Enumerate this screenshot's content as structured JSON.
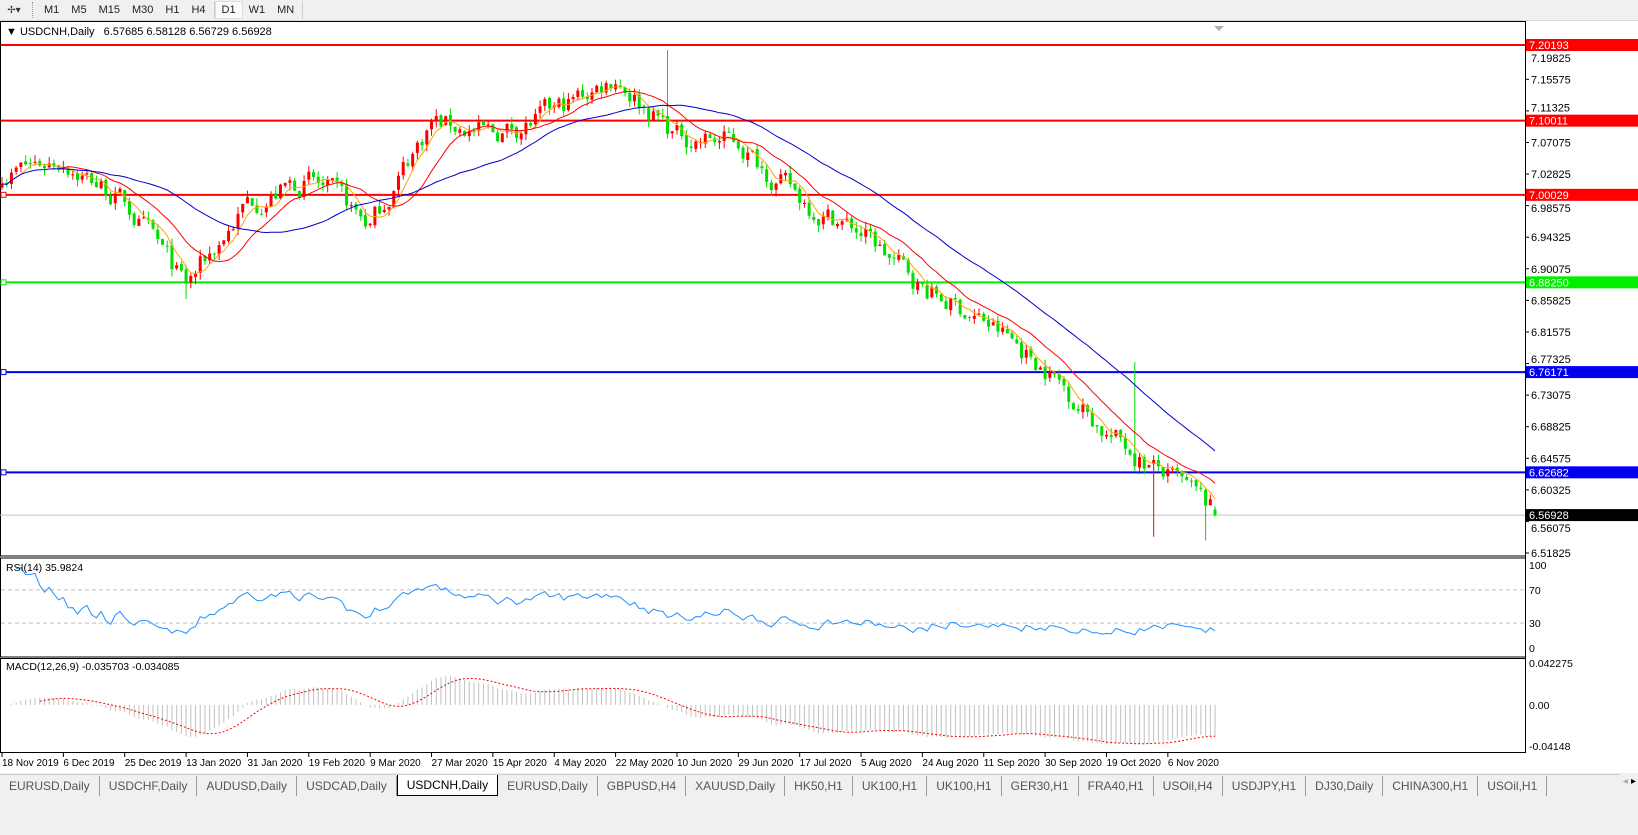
{
  "toolbar": {
    "tool_icon": "crosshair-cursor-icon",
    "timeframes": [
      "M1",
      "M5",
      "M15",
      "M30",
      "H1",
      "H4",
      "D1",
      "W1",
      "MN"
    ],
    "active_timeframe": "D1"
  },
  "chart_header": {
    "symbol": "USDCNH,Daily",
    "ohlc": "6.57685 6.58128 6.56729 6.56928"
  },
  "colors": {
    "bull_candle": "#ff0000",
    "bear_candle": "#00dd00",
    "ma_fast": "#ffa500",
    "ma_mid": "#ff0000",
    "ma_slow": "#0000cc",
    "rsi_line": "#1e90ff",
    "macd_histogram": "#c0c0c0",
    "macd_signal": "#ff0000"
  },
  "price_axis": {
    "ticks": [
      "7.19825",
      "7.15575",
      "7.11325",
      "7.07075",
      "7.02825",
      "6.98575",
      "6.94325",
      "6.90075",
      "6.85825",
      "6.81575",
      "6.77325",
      "6.73075",
      "6.68825",
      "6.64575",
      "6.60325",
      "6.56075",
      "6.51825"
    ]
  },
  "horizontal_lines": [
    {
      "price": "7.20193",
      "color": "#ff0000"
    },
    {
      "price": "7.10011",
      "color": "#ff0000"
    },
    {
      "price": "7.00029",
      "color": "#ff0000"
    },
    {
      "price": "6.88250",
      "color": "#00ee00"
    },
    {
      "price": "6.76171",
      "color": "#0000ee"
    },
    {
      "price": "6.62682",
      "color": "#0000ee"
    }
  ],
  "current_price": "6.56928",
  "rsi": {
    "label": "RSI(14) 35.9824",
    "ticks": [
      "100",
      "70",
      "30",
      "0"
    ]
  },
  "macd": {
    "label": "MACD(12,26,9) -0.035703 -0.034085",
    "ticks": [
      "0.042275",
      "0.00",
      "-0.04148"
    ]
  },
  "chart_data": {
    "type": "candlestick",
    "symbol": "USDCNH",
    "timeframe": "Daily",
    "x_tick_labels": [
      "18 Nov 2019",
      "6 Dec 2019",
      "25 Dec 2019",
      "13 Jan 2020",
      "31 Jan 2020",
      "19 Feb 2020",
      "9 Mar 2020",
      "27 Mar 2020",
      "15 Apr 2020",
      "4 May 2020",
      "22 May 2020",
      "10 Jun 2020",
      "29 Jun 2020",
      "17 Jul 2020",
      "5 Aug 2020",
      "24 Aug 2020",
      "11 Sep 2020",
      "30 Sep 2020",
      "19 Oct 2020",
      "6 Nov 2020"
    ],
    "approx_close_at_ticks": [
      7.03,
      7.05,
      6.99,
      6.875,
      6.99,
      7.02,
      6.96,
      7.1,
      7.08,
      7.11,
      7.16,
      7.08,
      7.07,
      6.995,
      6.95,
      6.875,
      6.83,
      6.77,
      6.68,
      6.62
    ],
    "last_bar": {
      "open": 6.57685,
      "high": 6.58128,
      "low": 6.56729,
      "close": 6.56928
    },
    "ylim": [
      6.51825,
      7.20193
    ],
    "indicators": [
      "Moving averages (orange, red, blue)",
      "RSI(14)",
      "MACD(12,26,9)"
    ]
  },
  "tabs": [
    "EURUSD,Daily",
    "USDCHF,Daily",
    "AUDUSD,Daily",
    "USDCAD,Daily",
    "USDCNH,Daily",
    "EURUSD,Daily",
    "GBPUSD,H4",
    "XAUUSD,Daily",
    "HK50,H1",
    "UK100,H1",
    "UK100,H1",
    "GER30,H1",
    "FRA40,H1",
    "USOil,H4",
    "USDJPY,H1",
    "DJ30,Daily",
    "CHINA300,H1",
    "USOil,H1"
  ],
  "active_tab": "USDCNH,Daily",
  "tab_scroll": {
    "left": "◂",
    "right": "▸"
  }
}
